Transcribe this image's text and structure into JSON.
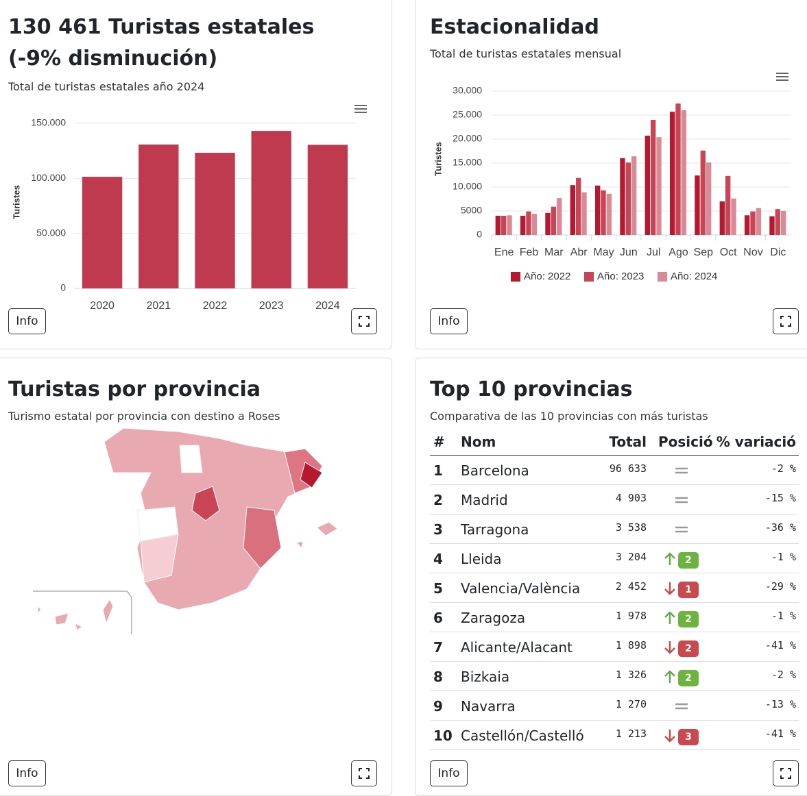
{
  "chart_data": [
    {
      "type": "bar",
      "title": "130 461 Turistas estatales (-9% disminución)",
      "subtitle": "Total de turistas estatales año 2024",
      "y_label": "Turistes",
      "color": "#bf3a4e",
      "categories": [
        "2020",
        "2021",
        "2022",
        "2023",
        "2024"
      ],
      "values": [
        101400,
        130700,
        123200,
        143100,
        130461
      ],
      "ylim": [
        0,
        150000
      ],
      "yticks": [
        0,
        {
          "value": 50000,
          "label": "50.000"
        },
        {
          "value": 100000,
          "label": "100.000"
        },
        {
          "value": 150000,
          "label": "150.000"
        }
      ],
      "grid": true
    },
    {
      "type": "grouped-bar",
      "title": "Estacionalidad",
      "subtitle": "Total de turistas estatales mensual",
      "y_label": "Turistes",
      "categories": [
        "Ene",
        "Feb",
        "Mar",
        "Abr",
        "May",
        "Jun",
        "Jul",
        "Ago",
        "Sep",
        "Oct",
        "Nov",
        "Dic"
      ],
      "series": [
        {
          "name": "Año: 2022",
          "color": "#b5182f",
          "values": [
            4000,
            4000,
            4600,
            10400,
            10300,
            16000,
            20700,
            25700,
            12400,
            7000,
            4100,
            3900
          ]
        },
        {
          "name": "Año: 2023",
          "color": "#c94556",
          "values": [
            4000,
            4900,
            5900,
            11900,
            9300,
            15100,
            24000,
            27400,
            17600,
            12300,
            4900,
            5400
          ]
        },
        {
          "name": "Año: 2024",
          "color": "#d98a94",
          "values": [
            4100,
            4400,
            7700,
            8900,
            8600,
            16400,
            20400,
            26000,
            15100,
            7600,
            5600,
            5000
          ]
        }
      ],
      "ylim": [
        0,
        30000
      ],
      "yticks": [
        0,
        5000,
        {
          "value": 10000,
          "label": "10.000"
        },
        {
          "value": 15000,
          "label": "15.000"
        },
        {
          "value": 20000,
          "label": "20.000"
        },
        {
          "value": 25000,
          "label": "25.000"
        },
        {
          "value": 30000,
          "label": "30.000"
        }
      ],
      "grid": true,
      "legend": "bottom"
    }
  ],
  "map": {
    "title": "Turistas por provincia",
    "subtitle": "Turismo estatal por provincia con destino a Roses"
  },
  "table": {
    "title": "Top 10 provincias",
    "subtitle": "Comparativa de las 10 provincias con más turistas",
    "columns": [
      "#",
      "Nom",
      "Total",
      "Posició",
      "% variació"
    ],
    "rows": [
      {
        "rank": "1",
        "name": "Barcelona",
        "total": "96 633",
        "trend": "same",
        "position": null,
        "variation": "-2 %"
      },
      {
        "rank": "2",
        "name": "Madrid",
        "total": "4 903",
        "trend": "same",
        "position": null,
        "variation": "-15 %"
      },
      {
        "rank": "3",
        "name": "Tarragona",
        "total": "3 538",
        "trend": "same",
        "position": null,
        "variation": "-36 %"
      },
      {
        "rank": "4",
        "name": "Lleida",
        "total": "3 204",
        "trend": "up",
        "position": "2",
        "variation": "-1 %"
      },
      {
        "rank": "5",
        "name": "Valencia/València",
        "total": "2 452",
        "trend": "down",
        "position": "1",
        "variation": "-29 %"
      },
      {
        "rank": "6",
        "name": "Zaragoza",
        "total": "1 978",
        "trend": "up",
        "position": "2",
        "variation": "-1 %"
      },
      {
        "rank": "7",
        "name": "Alicante/Alacant",
        "total": "1 898",
        "trend": "down",
        "position": "2",
        "variation": "-41 %"
      },
      {
        "rank": "8",
        "name": "Bizkaia",
        "total": "1 326",
        "trend": "up",
        "position": "2",
        "variation": "-2 %"
      },
      {
        "rank": "9",
        "name": "Navarra",
        "total": "1 270",
        "trend": "same",
        "position": null,
        "variation": "-13 %"
      },
      {
        "rank": "10",
        "name": "Castellón/Castelló",
        "total": "1 213",
        "trend": "down",
        "position": "3",
        "variation": "-41 %"
      }
    ]
  },
  "info_label": "Info"
}
